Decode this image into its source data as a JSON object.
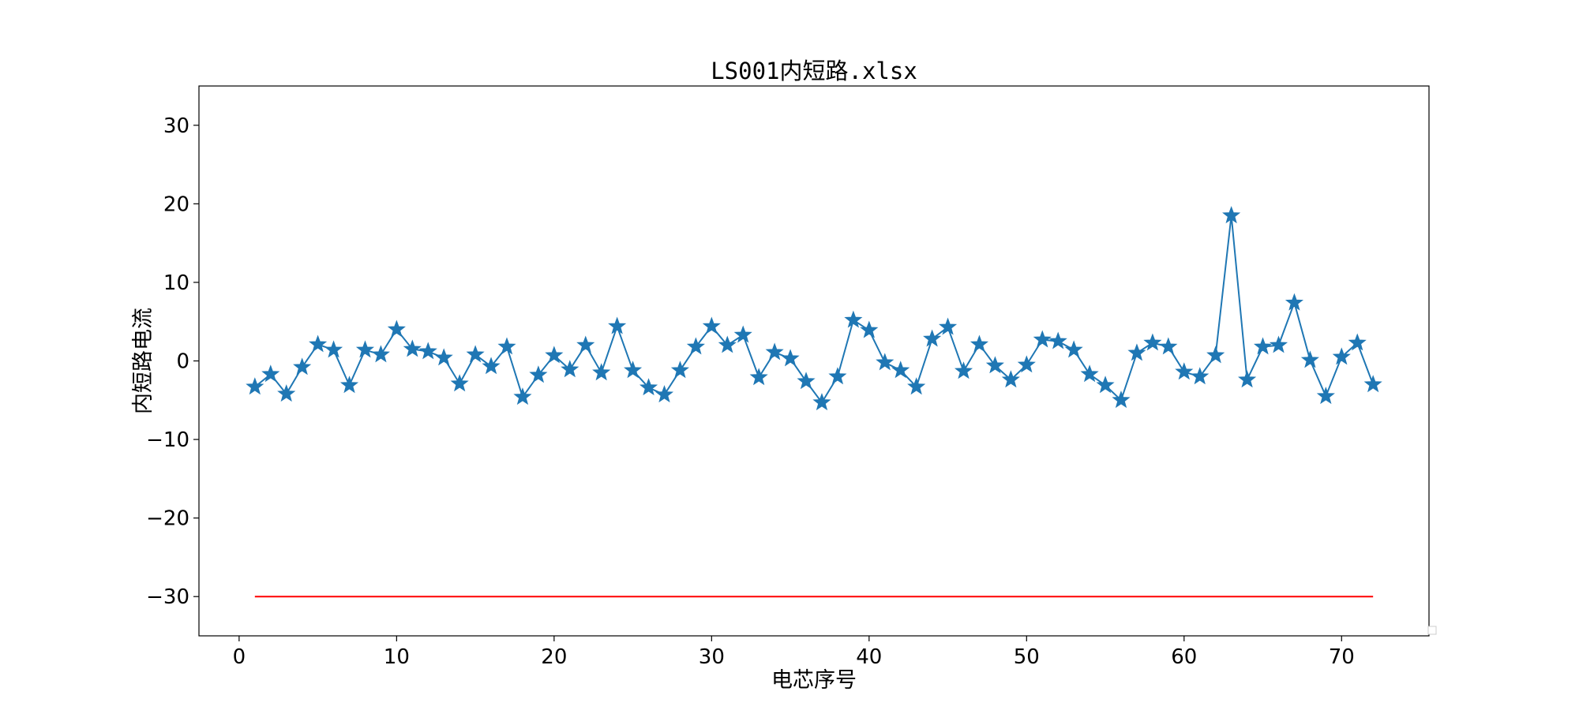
{
  "chart_data": {
    "type": "line",
    "title": "LS001内短路.xlsx",
    "xlabel": "电芯序号",
    "ylabel": "内短路电流",
    "xlim": [
      -2.55,
      75.55
    ],
    "ylim": [
      -35,
      35
    ],
    "xticks": [
      0,
      10,
      20,
      30,
      40,
      50,
      60,
      70
    ],
    "yticks": [
      -30,
      -20,
      -10,
      0,
      10,
      20,
      30
    ],
    "xtick_labels": [
      "0",
      "10",
      "20",
      "30",
      "40",
      "50",
      "60",
      "70"
    ],
    "ytick_labels": [
      "−30",
      "−20",
      "−10",
      "0",
      "10",
      "20",
      "30"
    ],
    "grid": false,
    "series": [
      {
        "color": "#1f77b4",
        "marker": "star",
        "x": [
          1,
          2,
          3,
          4,
          5,
          6,
          7,
          8,
          9,
          10,
          11,
          12,
          13,
          14,
          15,
          16,
          17,
          18,
          19,
          20,
          21,
          22,
          23,
          24,
          25,
          26,
          27,
          28,
          29,
          30,
          31,
          32,
          33,
          34,
          35,
          36,
          37,
          38,
          39,
          40,
          41,
          42,
          43,
          44,
          45,
          46,
          47,
          48,
          49,
          50,
          51,
          52,
          53,
          54,
          55,
          56,
          57,
          58,
          59,
          60,
          61,
          62,
          63,
          64,
          65,
          66,
          67,
          68,
          69,
          70,
          71,
          72
        ],
        "values": [
          -3.3,
          -1.7,
          -4.2,
          -0.8,
          2.1,
          1.4,
          -3.1,
          1.4,
          0.8,
          4.0,
          1.5,
          1.2,
          0.4,
          -2.9,
          0.8,
          -0.7,
          1.8,
          -4.6,
          -1.8,
          0.7,
          -1.1,
          2.0,
          -1.5,
          4.4,
          -1.2,
          -3.4,
          -4.3,
          -1.2,
          1.8,
          4.4,
          2.0,
          3.3,
          -2.1,
          1.1,
          0.3,
          -2.6,
          -5.3,
          -2.0,
          5.2,
          3.9,
          -0.2,
          -1.2,
          -3.3,
          2.8,
          4.3,
          -1.3,
          2.1,
          -0.6,
          -2.4,
          -0.5,
          2.7,
          2.5,
          1.4,
          -1.7,
          -3.1,
          -5.0,
          1.0,
          2.3,
          1.8,
          -1.4,
          -2.0,
          0.7,
          18.5,
          -2.4,
          1.8,
          2.0,
          7.4,
          0.1,
          -4.5,
          0.5,
          2.3,
          -3.0
        ]
      },
      {
        "color": "#ff0000",
        "marker": "none",
        "x": [
          1,
          72
        ],
        "values": [
          -30,
          -30
        ]
      }
    ]
  }
}
